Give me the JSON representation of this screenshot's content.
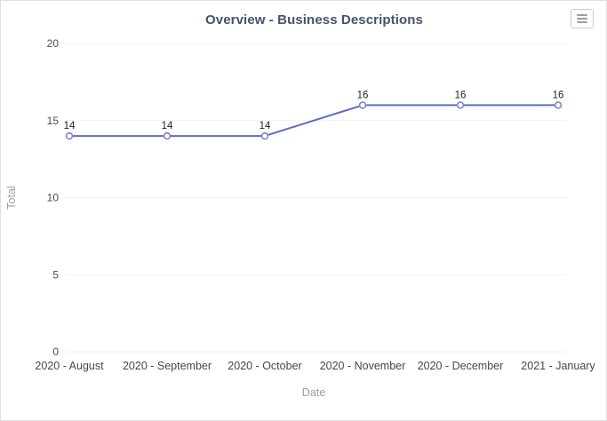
{
  "header": {
    "title": "Overview - Business Descriptions"
  },
  "icons": {
    "menu": "hamburger-menu-icon"
  },
  "chart_data": {
    "type": "line",
    "title": "Overview - Business Descriptions",
    "categories": [
      "2020 - August",
      "2020 - September",
      "2020 - October",
      "2020 - November",
      "2020 - December",
      "2021 - January"
    ],
    "series": [
      {
        "name": "Total",
        "values": [
          14,
          14,
          14,
          16,
          16,
          16
        ]
      }
    ],
    "xlabel": "Date",
    "ylabel": "Total",
    "ylim": [
      0,
      20
    ],
    "yticks": [
      0,
      5,
      10,
      15,
      20
    ],
    "grid": true,
    "legend": "none",
    "data_labels": true,
    "marker": "open-circle"
  },
  "colors": {
    "line": "#5e6cc0",
    "marker_stroke": "#7b85d2",
    "marker_fill": "#ffffff",
    "grid": "#f0f0f0",
    "title": "#44546a",
    "tick_label": "#4d4d4d",
    "data_label": "#1f1f1f",
    "axis_title": "#9aa0a6",
    "card_border": "#e0e0e0",
    "menu_icon": "#9e9e9e"
  }
}
